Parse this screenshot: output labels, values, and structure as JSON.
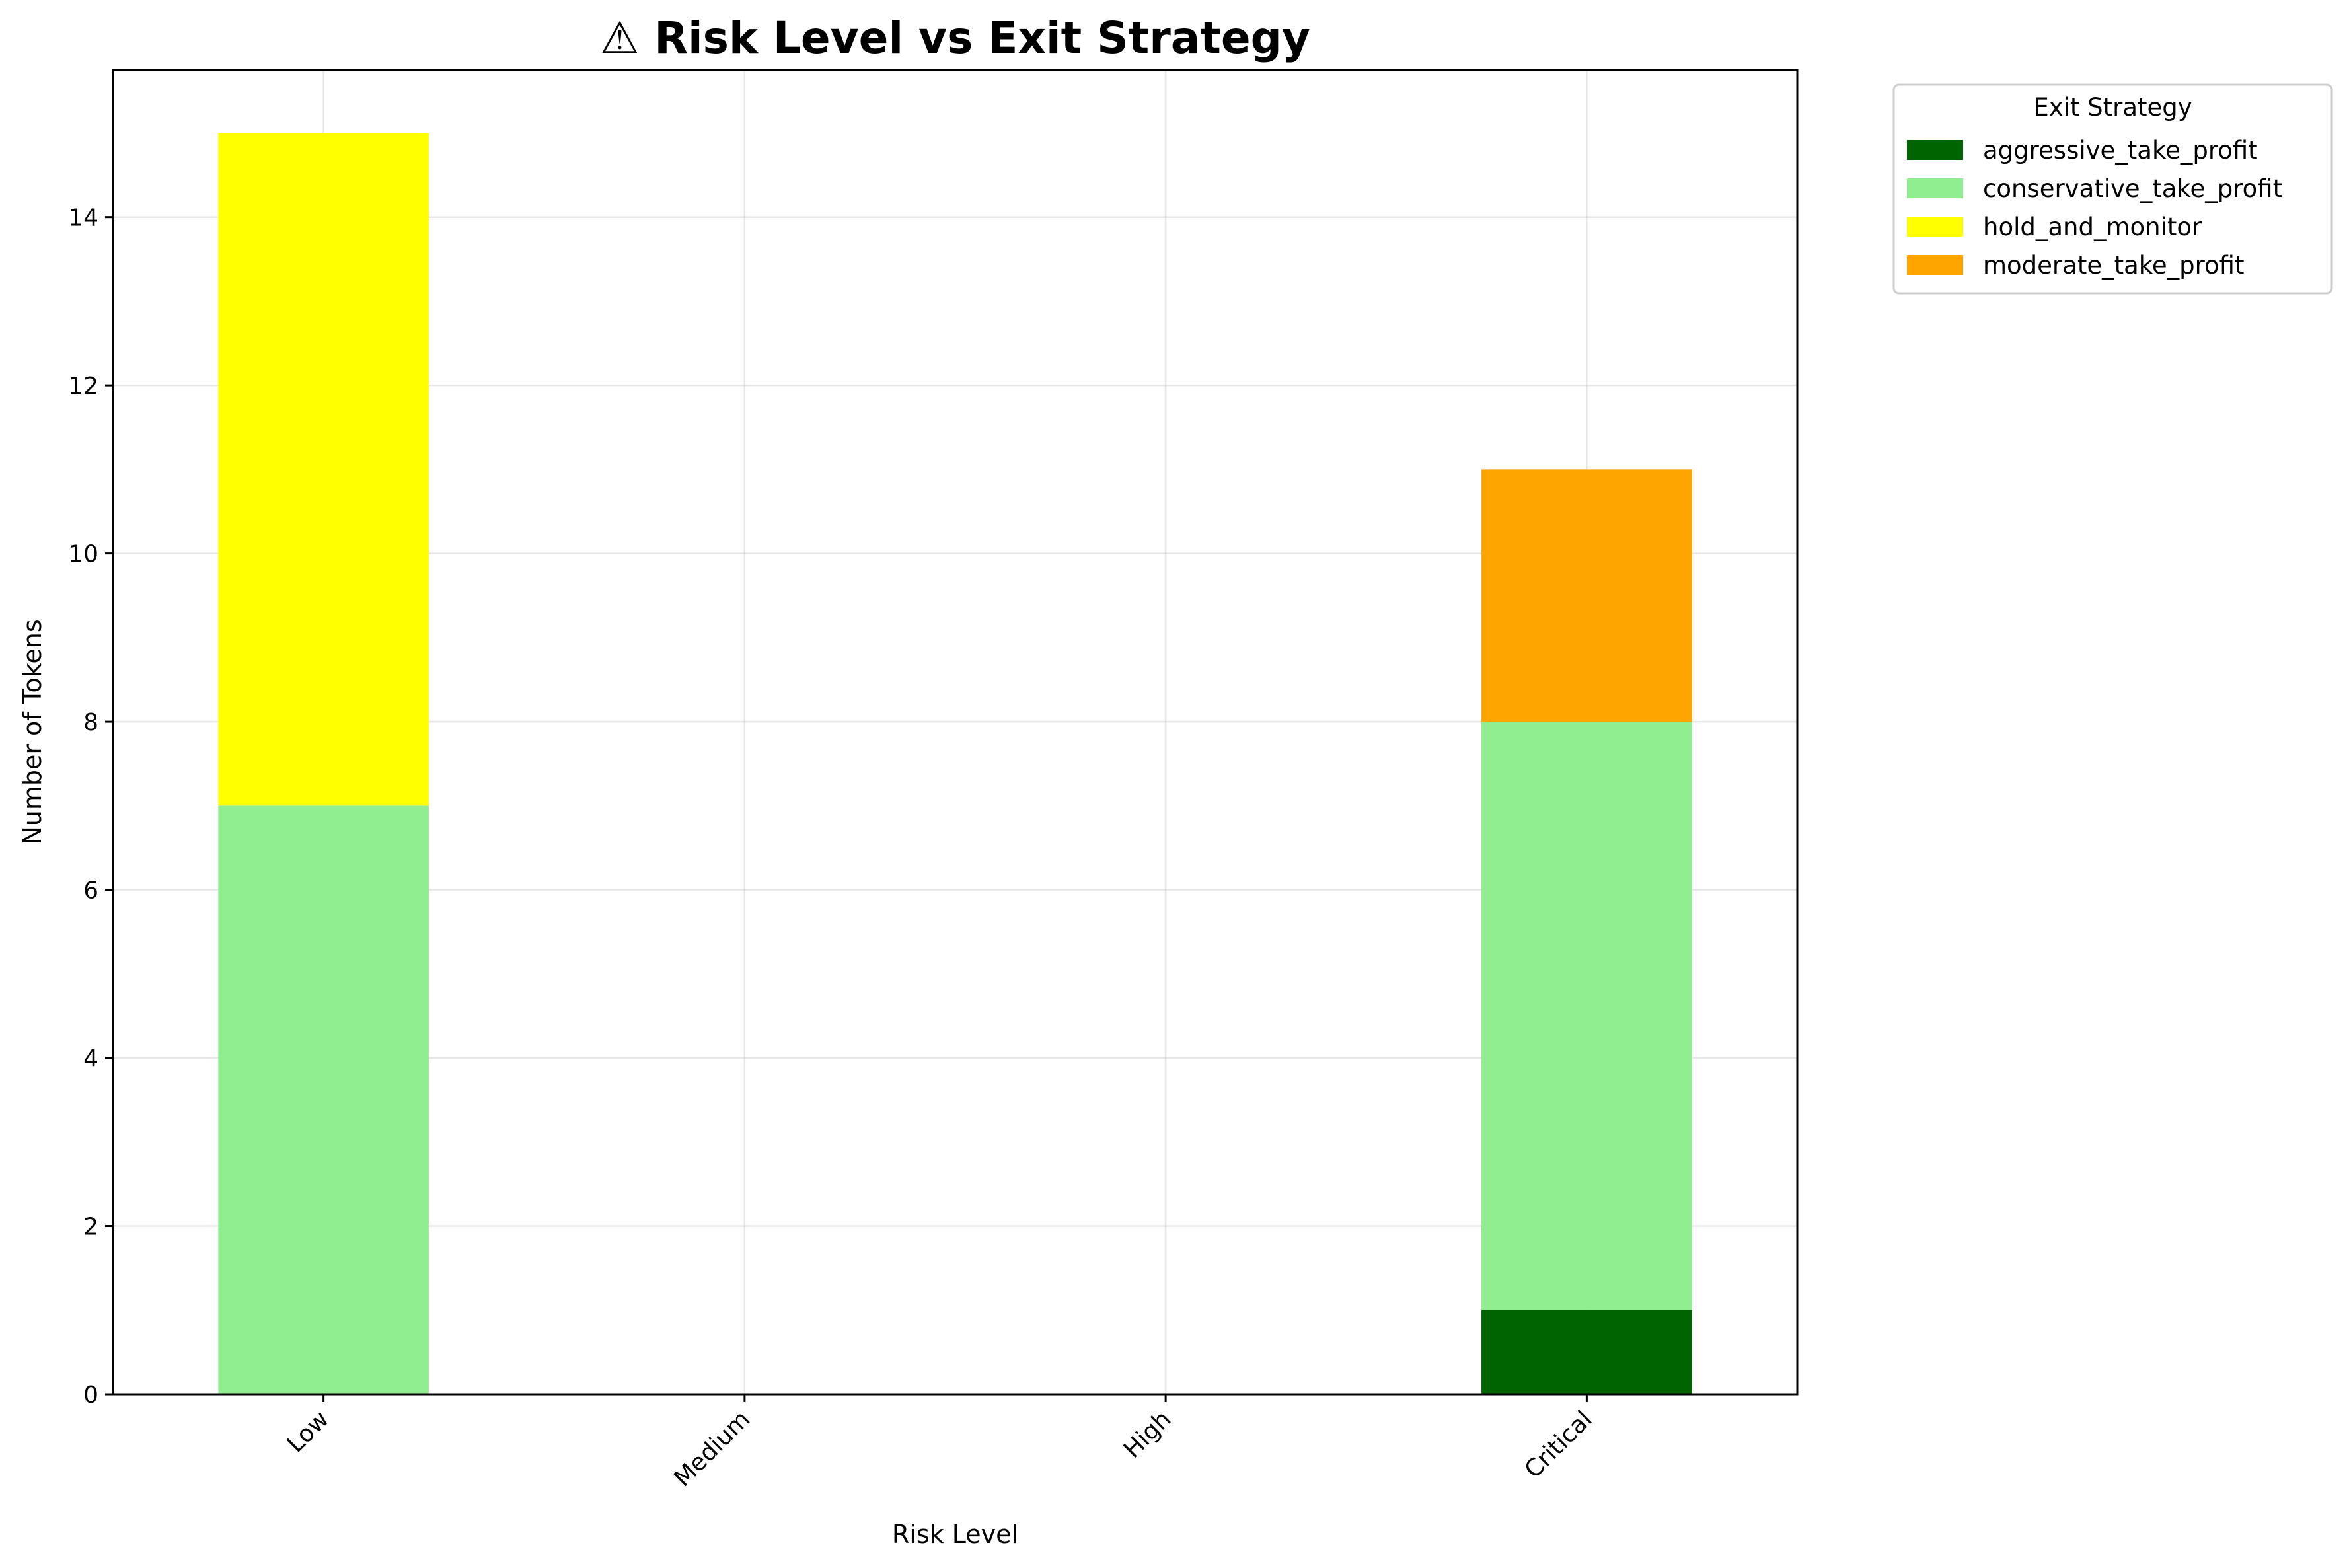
{
  "chart_data": {
    "type": "bar",
    "stacked": true,
    "title": "⚠ Risk Level vs Exit Strategy",
    "xlabel": "Risk Level",
    "ylabel": "Number of Tokens",
    "categories": [
      "Low",
      "Medium",
      "High",
      "Critical"
    ],
    "series": [
      {
        "name": "aggressive_take_profit",
        "color": "#006400",
        "values": [
          0,
          0,
          0,
          1
        ]
      },
      {
        "name": "conservative_take_profit",
        "color": "#90ee90",
        "values": [
          7,
          0,
          0,
          7
        ]
      },
      {
        "name": "hold_and_monitor",
        "color": "#ffff00",
        "values": [
          8,
          0,
          0,
          0
        ]
      },
      {
        "name": "moderate_take_profit",
        "color": "#ffa500",
        "values": [
          0,
          0,
          0,
          3
        ]
      }
    ],
    "yticks": [
      0,
      2,
      4,
      6,
      8,
      10,
      12,
      14
    ],
    "ylim": [
      0,
      15.75
    ],
    "grid": true,
    "legend": {
      "title": "Exit Strategy",
      "placement": "outside-top-right"
    }
  }
}
